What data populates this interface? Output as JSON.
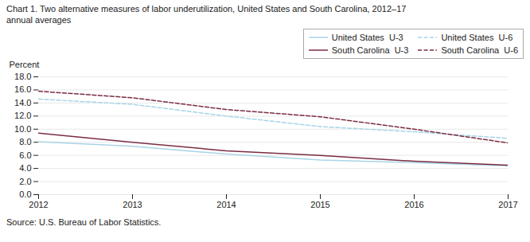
{
  "chart_data": {
    "type": "line",
    "title": "Chart 1. Two alternative measures of labor underutilization, United States and South Carolina, 2012–17",
    "subtitle": "annual averages",
    "y_label": "Percent",
    "source": "Source: U.S. Bureau of Labor Statistics.",
    "x": [
      2012,
      2013,
      2014,
      2015,
      2016,
      2017
    ],
    "series": [
      {
        "name": "United States  U-3",
        "color": "#a8d4e8",
        "line_style": "solid",
        "values": [
          8.1,
          7.4,
          6.2,
          5.3,
          4.9,
          4.4
        ]
      },
      {
        "name": "United States  U-6",
        "color": "#a8d4e8",
        "line_style": "dashed",
        "values": [
          14.6,
          13.8,
          12.0,
          10.4,
          9.6,
          8.6
        ]
      },
      {
        "name": "South Carolina  U-3",
        "color": "#7b2d42",
        "line_style": "solid",
        "values": [
          9.4,
          8.0,
          6.7,
          6.0,
          5.1,
          4.5
        ]
      },
      {
        "name": "South Carolina  U-6",
        "color": "#7b2d42",
        "line_style": "dashed",
        "values": [
          15.8,
          14.8,
          13.0,
          11.9,
          10.0,
          7.9
        ]
      }
    ],
    "xlim": [
      2012,
      2017
    ],
    "xticks": [
      2012,
      2013,
      2014,
      2015,
      2016,
      2017
    ],
    "ylim": [
      0,
      18
    ],
    "yticks": [
      {
        "value": 0,
        "label": "0.0"
      },
      {
        "value": 2,
        "label": "2.0"
      },
      {
        "value": 4,
        "label": "4.0"
      },
      {
        "value": 6,
        "label": "6.0"
      },
      {
        "value": 8,
        "label": "8.0"
      },
      {
        "value": 10,
        "label": "10.0"
      },
      {
        "value": 12,
        "label": "12.0"
      },
      {
        "value": 14,
        "label": "14.0"
      },
      {
        "value": 16,
        "label": "16.0"
      },
      {
        "value": 18,
        "label": "18.0"
      }
    ],
    "grid": true,
    "legend": "upper right"
  }
}
